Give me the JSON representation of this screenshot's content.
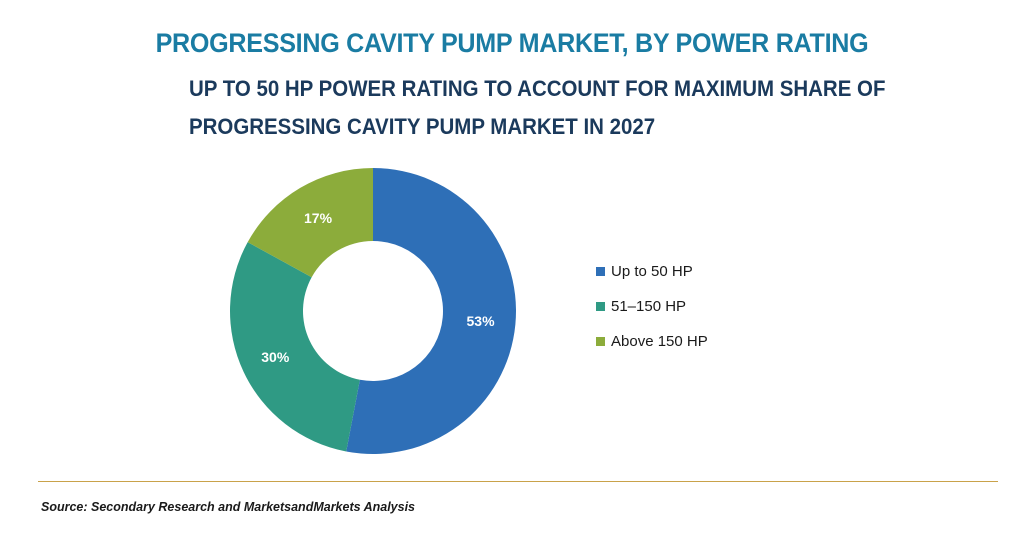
{
  "title": "PROGRESSING CAVITY PUMP MARKET, BY POWER RATING",
  "subtitle_line1": "UP TO 50 HP POWER RATING TO ACCOUNT FOR MAXIMUM SHARE OF",
  "subtitle_line2": "PROGRESSING CAVITY PUMP MARKET IN 2027",
  "source": "Source: Secondary Research and MarketsandMarkets Analysis",
  "chart_data": {
    "type": "pie",
    "style": "donut",
    "categories": [
      "Up to 50 HP",
      "51–150 HP",
      "Above 150 HP"
    ],
    "values": [
      53,
      30,
      17
    ],
    "data_labels": [
      "53%",
      "30%",
      "17%"
    ],
    "colors": [
      "#2e6fb7",
      "#2f9a84",
      "#8cac3b"
    ],
    "legend_position": "right"
  }
}
